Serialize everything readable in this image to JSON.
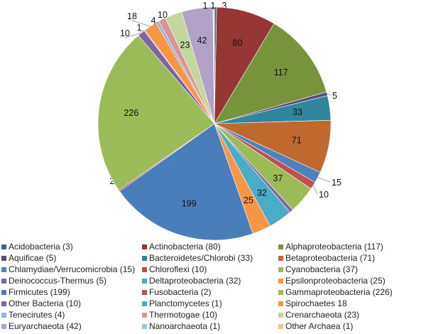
{
  "chart_data": {
    "type": "pie",
    "start": "top",
    "direction": "clockwise",
    "legend_position": "bottom",
    "slices": [
      {
        "name": "Acidobacteria (3)",
        "value": 3,
        "color": "#3C6496"
      },
      {
        "name": "Actinobacteria (80)",
        "value": 80,
        "color": "#953735"
      },
      {
        "name": "Alphaproteobacteria (117)",
        "value": 117,
        "color": "#77933C"
      },
      {
        "name": "Aquificae (5)",
        "value": 5,
        "color": "#604A7B"
      },
      {
        "name": "Bacteroidetes/Chlorobi (33)",
        "value": 33,
        "color": "#31859C"
      },
      {
        "name": "Betaproteobacteria (71)",
        "value": 71,
        "color": "#C0692E"
      },
      {
        "name": "Chlamydiae/Verrucomicrobia (15)",
        "value": 15,
        "color": "#4F81BD"
      },
      {
        "name": "Chloroflexi (10)",
        "value": 10,
        "color": "#C0504D"
      },
      {
        "name": "Cyanobacteria (37)",
        "value": 37,
        "color": "#9BBB59"
      },
      {
        "name": "Deinococcus-Thermus (5)",
        "value": 5,
        "color": "#8064A2"
      },
      {
        "name": "Deltaproteobacteria (32)",
        "value": 32,
        "color": "#4BACC6"
      },
      {
        "name": "Epsilonproteobacteria (25)",
        "value": 25,
        "color": "#F79646"
      },
      {
        "name": "Firmicutes (199)",
        "value": 199,
        "color": "#4A7EBB"
      },
      {
        "name": "Fusobacteria (2)",
        "value": 2,
        "color": "#C0504D"
      },
      {
        "name": "Gammaproteobacteria (226)",
        "value": 226,
        "color": "#9BBB59"
      },
      {
        "name": "Other Bacteria (10)",
        "value": 10,
        "color": "#8064A2"
      },
      {
        "name": "Planctomycetes (1)",
        "value": 1,
        "color": "#4BACC6"
      },
      {
        "name": "Spirochaetes 18",
        "value": 18,
        "color": "#F79646"
      },
      {
        "name": "Tenecirutes (4)",
        "value": 4,
        "color": "#95B3D7"
      },
      {
        "name": "Thermotogae (10)",
        "value": 10,
        "color": "#D99694"
      },
      {
        "name": "Crenarchaeota (23)",
        "value": 23,
        "color": "#C3D69B"
      },
      {
        "name": "Euryarchaeota (42)",
        "value": 42,
        "color": "#B3A2C7"
      },
      {
        "name": "Nanoarchaeota (1)",
        "value": 1,
        "color": "#93CDDD"
      },
      {
        "name": "Other Archaea (1)",
        "value": 1,
        "color": "#FAC090"
      }
    ]
  }
}
